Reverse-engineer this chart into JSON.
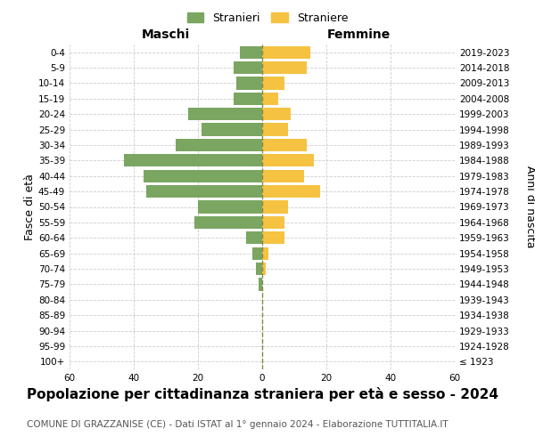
{
  "age_groups": [
    "100+",
    "95-99",
    "90-94",
    "85-89",
    "80-84",
    "75-79",
    "70-74",
    "65-69",
    "60-64",
    "55-59",
    "50-54",
    "45-49",
    "40-44",
    "35-39",
    "30-34",
    "25-29",
    "20-24",
    "15-19",
    "10-14",
    "5-9",
    "0-4"
  ],
  "birth_years": [
    "≤ 1923",
    "1924-1928",
    "1929-1933",
    "1934-1938",
    "1939-1943",
    "1944-1948",
    "1949-1953",
    "1954-1958",
    "1959-1963",
    "1964-1968",
    "1969-1973",
    "1974-1978",
    "1979-1983",
    "1984-1988",
    "1989-1993",
    "1994-1998",
    "1999-2003",
    "2004-2008",
    "2009-2013",
    "2014-2018",
    "2019-2023"
  ],
  "maschi": [
    0,
    0,
    0,
    0,
    0,
    1,
    2,
    3,
    5,
    21,
    20,
    36,
    37,
    43,
    27,
    19,
    23,
    9,
    8,
    9,
    7
  ],
  "femmine": [
    0,
    0,
    0,
    0,
    0,
    0,
    1,
    2,
    7,
    7,
    8,
    18,
    13,
    16,
    14,
    8,
    9,
    5,
    7,
    14,
    15
  ],
  "maschi_color": "#7aa661",
  "femmine_color": "#f5c242",
  "bar_height": 0.82,
  "xlabel_left": "Maschi",
  "xlabel_right": "Femmine",
  "ylabel_left": "Fasce di età",
  "ylabel_right": "Anni di nascita",
  "legend_stranieri": "Stranieri",
  "legend_straniere": "Straniere",
  "title": "Popolazione per cittadinanza straniera per età e sesso - 2024",
  "subtitle": "COMUNE DI GRAZZANISE (CE) - Dati ISTAT al 1° gennaio 2024 - Elaborazione TUTTITALIA.IT",
  "xlim": 60,
  "grid_color": "#cccccc",
  "bg_color": "#ffffff",
  "vline_color": "#888844",
  "title_fontsize": 11,
  "subtitle_fontsize": 7.5,
  "tick_fontsize": 7.5,
  "label_fontsize": 9
}
